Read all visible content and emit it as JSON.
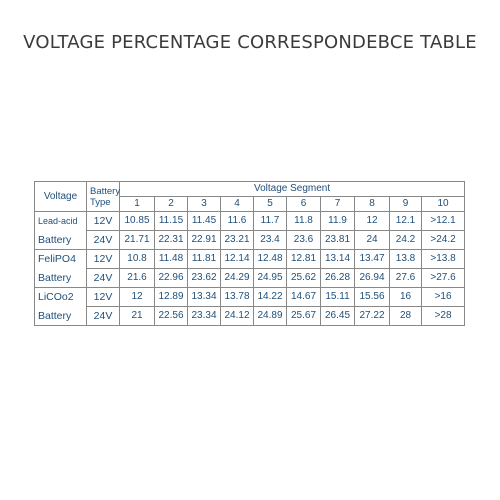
{
  "title": "VOLTAGE PERCENTAGE CORRESPONDEBCE TABLE",
  "header": {
    "voltage": "Voltage",
    "battery_type_1": "Battery",
    "battery_type_2": "Type",
    "segment": "Voltage Segment",
    "segments": [
      "1",
      "2",
      "3",
      "4",
      "5",
      "6",
      "7",
      "8",
      "9",
      "10"
    ]
  },
  "rows": [
    {
      "type_line1": "Lead-acid",
      "type_line2": "Battery",
      "v12": {
        "volt": "12V",
        "values": [
          "10.85",
          "11.15",
          "11.45",
          "11.6",
          "11.7",
          "11.8",
          "11.9",
          "12",
          "12.1",
          ">12.1"
        ]
      },
      "v24": {
        "volt": "24V",
        "values": [
          "21.71",
          "22.31",
          "22.91",
          "23.21",
          "23.4",
          "23.6",
          "23.81",
          "24",
          "24.2",
          ">24.2"
        ]
      }
    },
    {
      "type_line1": "FeliPO4",
      "type_line2": "Battery",
      "v12": {
        "volt": "12V",
        "values": [
          "10.8",
          "11.48",
          "11.81",
          "12.14",
          "12.48",
          "12.81",
          "13.14",
          "13.47",
          "13.8",
          ">13.8"
        ]
      },
      "v24": {
        "volt": "24V",
        "values": [
          "21.6",
          "22.96",
          "23.62",
          "24.29",
          "24.95",
          "25.62",
          "26.28",
          "26.94",
          "27.6",
          ">27.6"
        ]
      }
    },
    {
      "type_line1": "LiCOo2",
      "type_line2": "Battery",
      "v12": {
        "volt": "12V",
        "values": [
          "12",
          "12.89",
          "13.34",
          "13.78",
          "14.22",
          "14.67",
          "15.11",
          "15.56",
          "16",
          ">16"
        ]
      },
      "v24": {
        "volt": "24V",
        "values": [
          "21",
          "22.56",
          "23.34",
          "24.12",
          "24.89",
          "25.67",
          "26.45",
          "27.22",
          "28",
          ">28"
        ]
      }
    }
  ]
}
